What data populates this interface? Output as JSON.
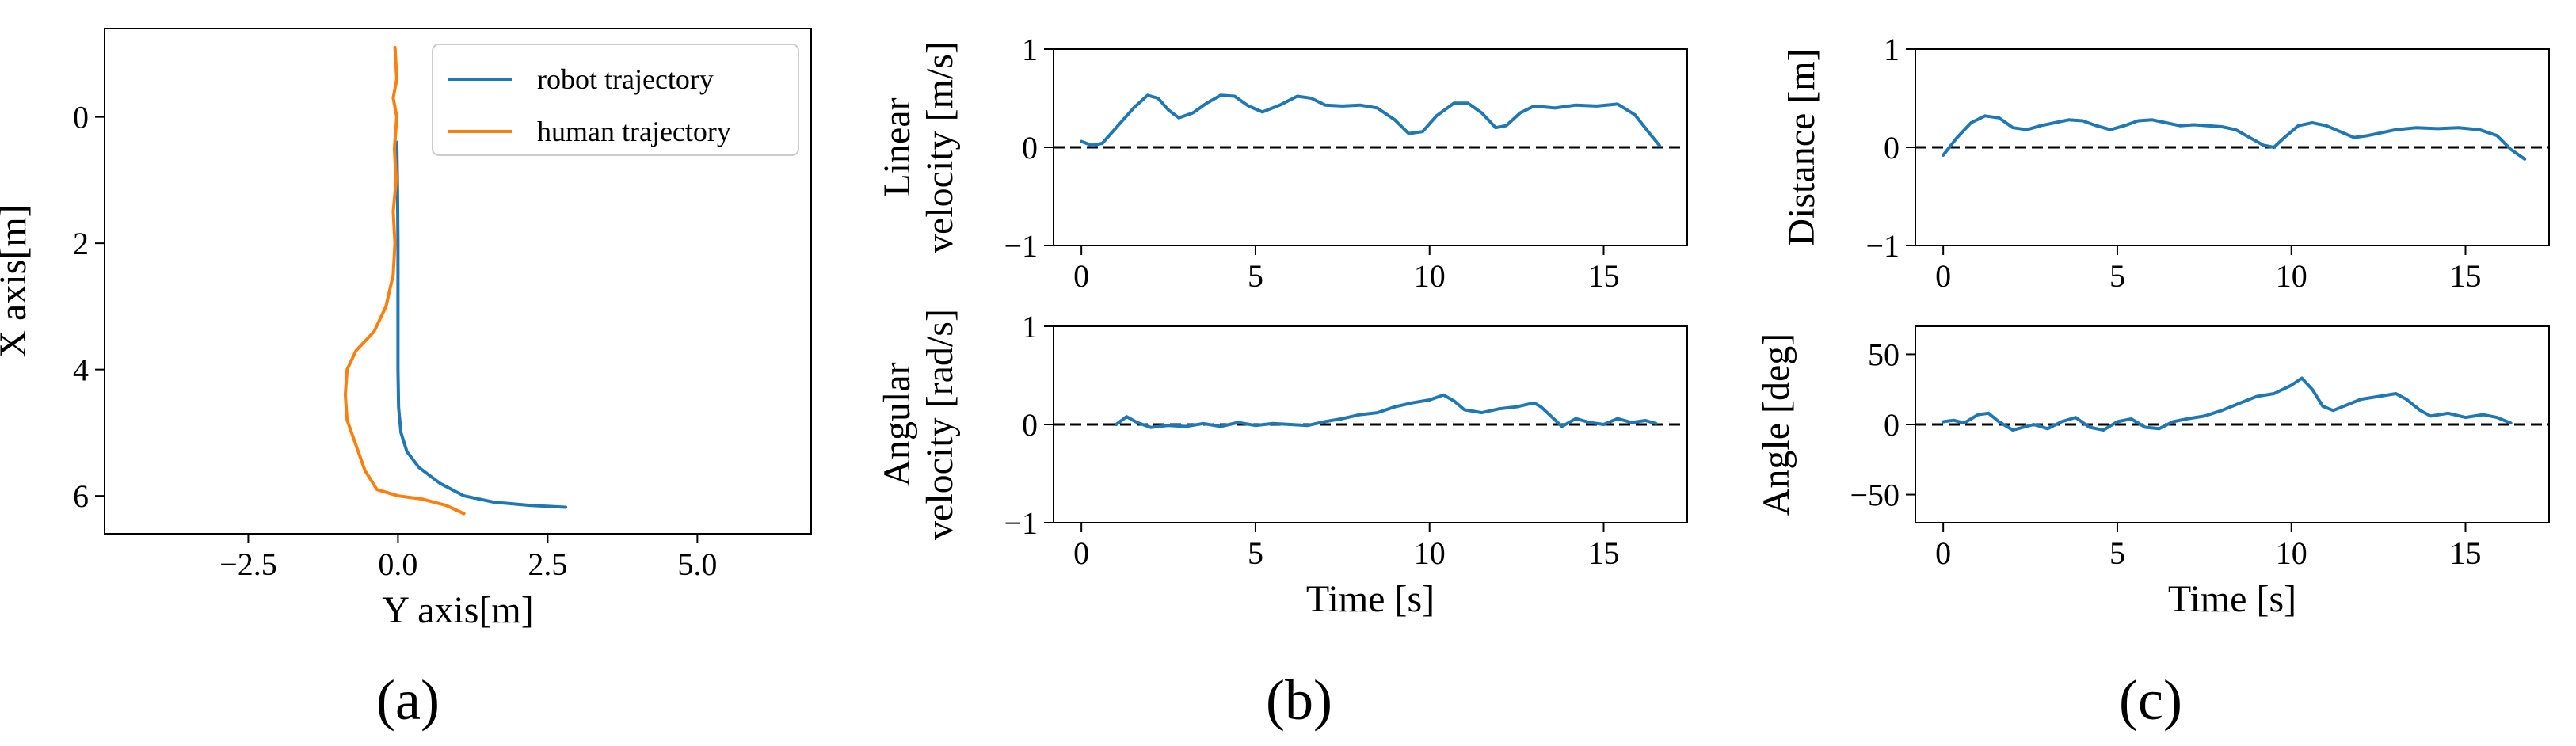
{
  "colors": {
    "robot": "#1f77b4",
    "human": "#ff7f0e",
    "axis": "#000000",
    "zero_line": "#000000"
  },
  "panel_labels": {
    "a": "(a)",
    "b": "(b)",
    "c": "(c)"
  },
  "chart_data": [
    {
      "id": "traj",
      "type": "line",
      "title": "",
      "xlabel": "Y axis[m]",
      "ylabel": "X axis[m]",
      "xlim": [
        -4.9,
        6.9
      ],
      "ylim": [
        6.6,
        -1.4
      ],
      "xticks": [
        -2.5,
        0.0,
        2.5,
        5.0
      ],
      "xtick_labels": [
        "−2.5",
        "0.0",
        "2.5",
        "5.0"
      ],
      "yticks": [
        0,
        2,
        4,
        6
      ],
      "ytick_labels": [
        "0",
        "2",
        "4",
        "6"
      ],
      "legend": {
        "position": "top-right",
        "entries": [
          "robot trajectory",
          "human trajectory"
        ]
      },
      "series": [
        {
          "name": "robot trajectory",
          "color": "#1f77b4",
          "points": [
            [
              -0.02,
              0.4
            ],
            [
              -0.01,
              1.0
            ],
            [
              0.0,
              2.0
            ],
            [
              0.0,
              3.0
            ],
            [
              0.0,
              4.0
            ],
            [
              0.01,
              4.6
            ],
            [
              0.05,
              5.0
            ],
            [
              0.15,
              5.3
            ],
            [
              0.35,
              5.55
            ],
            [
              0.7,
              5.8
            ],
            [
              1.1,
              6.0
            ],
            [
              1.6,
              6.1
            ],
            [
              2.2,
              6.15
            ],
            [
              2.8,
              6.18
            ]
          ]
        },
        {
          "name": "human trajectory",
          "color": "#ff7f0e",
          "points": [
            [
              -0.05,
              -1.1
            ],
            [
              -0.02,
              -0.6
            ],
            [
              -0.08,
              -0.3
            ],
            [
              -0.02,
              0.0
            ],
            [
              -0.06,
              0.5
            ],
            [
              -0.03,
              1.0
            ],
            [
              -0.08,
              1.5
            ],
            [
              -0.05,
              2.0
            ],
            [
              -0.08,
              2.5
            ],
            [
              -0.2,
              3.0
            ],
            [
              -0.4,
              3.4
            ],
            [
              -0.7,
              3.7
            ],
            [
              -0.85,
              4.0
            ],
            [
              -0.88,
              4.4
            ],
            [
              -0.85,
              4.8
            ],
            [
              -0.7,
              5.2
            ],
            [
              -0.55,
              5.6
            ],
            [
              -0.35,
              5.9
            ],
            [
              0.0,
              6.0
            ],
            [
              0.4,
              6.05
            ],
            [
              0.8,
              6.15
            ],
            [
              1.1,
              6.28
            ]
          ]
        }
      ]
    },
    {
      "id": "lin_vel",
      "type": "line",
      "xlabel": "",
      "ylabel": [
        "Linear",
        "velocity [m/s]"
      ],
      "xlim": [
        -0.8,
        17.4
      ],
      "ylim": [
        -1,
        1
      ],
      "xticks": [
        0,
        5,
        10,
        15
      ],
      "xtick_labels": [
        "0",
        "5",
        "10",
        "15"
      ],
      "yticks": [
        -1,
        0,
        1
      ],
      "ytick_labels": [
        "−1",
        "0",
        "1"
      ],
      "zero_line": true,
      "series": [
        {
          "name": "linear velocity",
          "color": "#1f77b4",
          "points": [
            [
              0,
              0.06
            ],
            [
              0.3,
              0.02
            ],
            [
              0.6,
              0.04
            ],
            [
              1.0,
              0.2
            ],
            [
              1.5,
              0.4
            ],
            [
              1.9,
              0.53
            ],
            [
              2.2,
              0.5
            ],
            [
              2.5,
              0.38
            ],
            [
              2.8,
              0.3
            ],
            [
              3.2,
              0.35
            ],
            [
              3.6,
              0.45
            ],
            [
              4.0,
              0.53
            ],
            [
              4.4,
              0.52
            ],
            [
              4.8,
              0.42
            ],
            [
              5.2,
              0.36
            ],
            [
              5.7,
              0.43
            ],
            [
              6.2,
              0.52
            ],
            [
              6.6,
              0.5
            ],
            [
              7.0,
              0.43
            ],
            [
              7.5,
              0.42
            ],
            [
              8.0,
              0.43
            ],
            [
              8.5,
              0.4
            ],
            [
              9.0,
              0.28
            ],
            [
              9.4,
              0.14
            ],
            [
              9.8,
              0.16
            ],
            [
              10.2,
              0.32
            ],
            [
              10.7,
              0.45
            ],
            [
              11.1,
              0.45
            ],
            [
              11.5,
              0.35
            ],
            [
              11.9,
              0.2
            ],
            [
              12.2,
              0.22
            ],
            [
              12.6,
              0.35
            ],
            [
              13.0,
              0.42
            ],
            [
              13.6,
              0.4
            ],
            [
              14.2,
              0.43
            ],
            [
              14.8,
              0.42
            ],
            [
              15.4,
              0.44
            ],
            [
              15.9,
              0.33
            ],
            [
              16.3,
              0.15
            ],
            [
              16.6,
              0.02
            ]
          ]
        }
      ]
    },
    {
      "id": "ang_vel",
      "type": "line",
      "xlabel": "Time [s]",
      "ylabel": [
        "Angular",
        "velocity [rad/s]"
      ],
      "xlim": [
        -0.8,
        17.4
      ],
      "ylim": [
        -1,
        1
      ],
      "xticks": [
        0,
        5,
        10,
        15
      ],
      "xtick_labels": [
        "0",
        "5",
        "10",
        "15"
      ],
      "yticks": [
        -1,
        0,
        1
      ],
      "ytick_labels": [
        "−1",
        "0",
        "1"
      ],
      "zero_line": true,
      "series": [
        {
          "name": "angular velocity",
          "color": "#1f77b4",
          "points": [
            [
              1.0,
              0.0
            ],
            [
              1.3,
              0.08
            ],
            [
              1.6,
              0.02
            ],
            [
              2.0,
              -0.03
            ],
            [
              2.5,
              -0.01
            ],
            [
              3.0,
              -0.02
            ],
            [
              3.5,
              0.01
            ],
            [
              4.0,
              -0.02
            ],
            [
              4.5,
              0.02
            ],
            [
              5.0,
              -0.01
            ],
            [
              5.5,
              0.01
            ],
            [
              6.0,
              0.0
            ],
            [
              6.5,
              -0.01
            ],
            [
              7.0,
              0.03
            ],
            [
              7.5,
              0.06
            ],
            [
              8.0,
              0.1
            ],
            [
              8.5,
              0.12
            ],
            [
              9.0,
              0.18
            ],
            [
              9.5,
              0.22
            ],
            [
              10.0,
              0.25
            ],
            [
              10.4,
              0.3
            ],
            [
              10.7,
              0.24
            ],
            [
              11.0,
              0.15
            ],
            [
              11.5,
              0.12
            ],
            [
              12.0,
              0.16
            ],
            [
              12.5,
              0.18
            ],
            [
              13.0,
              0.22
            ],
            [
              13.2,
              0.18
            ],
            [
              13.5,
              0.08
            ],
            [
              13.8,
              -0.02
            ],
            [
              14.2,
              0.06
            ],
            [
              14.6,
              0.02
            ],
            [
              15.0,
              0.0
            ],
            [
              15.4,
              0.06
            ],
            [
              15.8,
              0.02
            ],
            [
              16.2,
              0.04
            ],
            [
              16.5,
              0.01
            ]
          ]
        }
      ]
    },
    {
      "id": "distance",
      "type": "line",
      "xlabel": "",
      "ylabel": [
        "Distance [m]"
      ],
      "xlim": [
        -0.8,
        17.4
      ],
      "ylim": [
        -1,
        1
      ],
      "xticks": [
        0,
        5,
        10,
        15
      ],
      "xtick_labels": [
        "0",
        "5",
        "10",
        "15"
      ],
      "yticks": [
        -1,
        0,
        1
      ],
      "ytick_labels": [
        "−1",
        "0",
        "1"
      ],
      "zero_line": true,
      "series": [
        {
          "name": "distance",
          "color": "#1f77b4",
          "points": [
            [
              0,
              -0.08
            ],
            [
              0.4,
              0.1
            ],
            [
              0.8,
              0.25
            ],
            [
              1.2,
              0.32
            ],
            [
              1.6,
              0.3
            ],
            [
              2.0,
              0.2
            ],
            [
              2.4,
              0.18
            ],
            [
              2.8,
              0.22
            ],
            [
              3.2,
              0.25
            ],
            [
              3.6,
              0.28
            ],
            [
              4.0,
              0.27
            ],
            [
              4.4,
              0.22
            ],
            [
              4.8,
              0.18
            ],
            [
              5.2,
              0.22
            ],
            [
              5.6,
              0.27
            ],
            [
              6.0,
              0.28
            ],
            [
              6.4,
              0.25
            ],
            [
              6.8,
              0.22
            ],
            [
              7.2,
              0.23
            ],
            [
              7.6,
              0.22
            ],
            [
              8.0,
              0.21
            ],
            [
              8.4,
              0.18
            ],
            [
              8.8,
              0.1
            ],
            [
              9.2,
              0.02
            ],
            [
              9.5,
              0.0
            ],
            [
              9.8,
              0.1
            ],
            [
              10.2,
              0.22
            ],
            [
              10.6,
              0.25
            ],
            [
              11.0,
              0.22
            ],
            [
              11.4,
              0.16
            ],
            [
              11.8,
              0.1
            ],
            [
              12.2,
              0.12
            ],
            [
              12.6,
              0.15
            ],
            [
              13.0,
              0.18
            ],
            [
              13.6,
              0.2
            ],
            [
              14.2,
              0.19
            ],
            [
              14.8,
              0.2
            ],
            [
              15.4,
              0.18
            ],
            [
              15.9,
              0.12
            ],
            [
              16.3,
              -0.02
            ],
            [
              16.7,
              -0.12
            ]
          ]
        }
      ]
    },
    {
      "id": "angle",
      "type": "line",
      "xlabel": "Time [s]",
      "ylabel": [
        "Angle [deg]"
      ],
      "xlim": [
        -0.8,
        17.4
      ],
      "ylim": [
        -70,
        70
      ],
      "xticks": [
        0,
        5,
        10,
        15
      ],
      "xtick_labels": [
        "0",
        "5",
        "10",
        "15"
      ],
      "yticks": [
        -50,
        0,
        50
      ],
      "ytick_labels": [
        "−50",
        "0",
        "50"
      ],
      "zero_line": true,
      "series": [
        {
          "name": "angle",
          "color": "#1f77b4",
          "points": [
            [
              0,
              2
            ],
            [
              0.3,
              3
            ],
            [
              0.6,
              1
            ],
            [
              1.0,
              7
            ],
            [
              1.3,
              8
            ],
            [
              1.6,
              2
            ],
            [
              2.0,
              -4
            ],
            [
              2.3,
              -2
            ],
            [
              2.6,
              0
            ],
            [
              3.0,
              -3
            ],
            [
              3.4,
              2
            ],
            [
              3.8,
              5
            ],
            [
              4.2,
              -2
            ],
            [
              4.6,
              -4
            ],
            [
              5.0,
              2
            ],
            [
              5.4,
              4
            ],
            [
              5.8,
              -2
            ],
            [
              6.2,
              -3
            ],
            [
              6.6,
              2
            ],
            [
              7.0,
              4
            ],
            [
              7.5,
              6
            ],
            [
              8.0,
              10
            ],
            [
              8.5,
              15
            ],
            [
              9.0,
              20
            ],
            [
              9.5,
              22
            ],
            [
              10.0,
              28
            ],
            [
              10.3,
              33
            ],
            [
              10.6,
              25
            ],
            [
              10.9,
              13
            ],
            [
              11.2,
              10
            ],
            [
              11.6,
              14
            ],
            [
              12.0,
              18
            ],
            [
              12.5,
              20
            ],
            [
              13.0,
              22
            ],
            [
              13.3,
              18
            ],
            [
              13.7,
              10
            ],
            [
              14.0,
              6
            ],
            [
              14.5,
              8
            ],
            [
              15.0,
              5
            ],
            [
              15.5,
              7
            ],
            [
              15.9,
              5
            ],
            [
              16.3,
              1
            ]
          ]
        }
      ]
    }
  ]
}
